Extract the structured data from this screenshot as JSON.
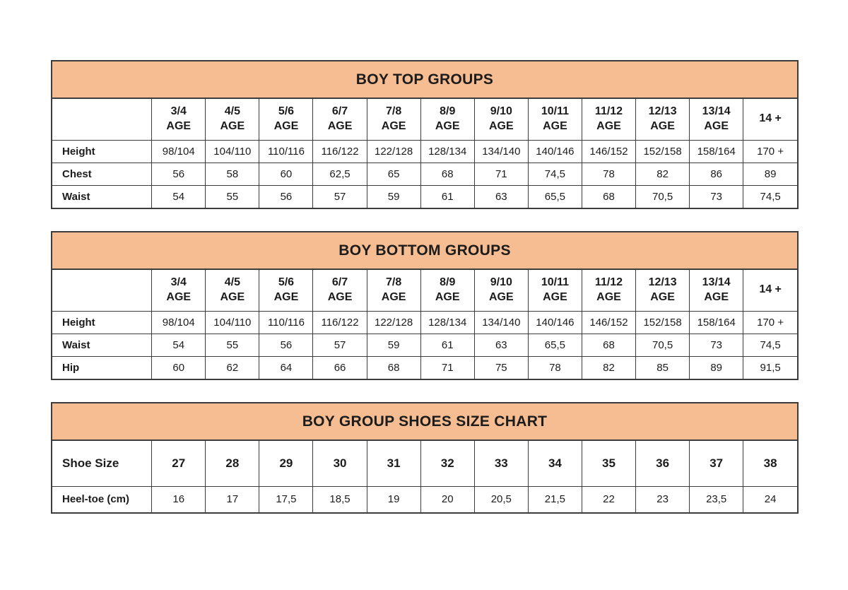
{
  "style": {
    "band_color": "#f6bc92",
    "border_color": "#3c3c3c",
    "text_color": "#1c1c1c",
    "background": "#ffffff"
  },
  "chart_data": [
    {
      "type": "table",
      "title": "BOY TOP GROUPS",
      "columns": [
        "",
        "3/4\nAGE",
        "4/5\nAGE",
        "5/6\nAGE",
        "6/7\nAGE",
        "7/8\nAGE",
        "8/9\nAGE",
        "9/10\nAGE",
        "10/11\nAGE",
        "11/12\nAGE",
        "12/13\nAGE",
        "13/14\nAGE",
        "14 +"
      ],
      "rows": [
        [
          "Height",
          "98/104",
          "104/110",
          "110/116",
          "116/122",
          "122/128",
          "128/134",
          "134/140",
          "140/146",
          "146/152",
          "152/158",
          "158/164",
          "170 +"
        ],
        [
          "Chest",
          "56",
          "58",
          "60",
          "62,5",
          "65",
          "68",
          "71",
          "74,5",
          "78",
          "82",
          "86",
          "89"
        ],
        [
          "Waist",
          "54",
          "55",
          "56",
          "57",
          "59",
          "61",
          "63",
          "65,5",
          "68",
          "70,5",
          "73",
          "74,5"
        ]
      ]
    },
    {
      "type": "table",
      "title": "BOY BOTTOM GROUPS",
      "columns": [
        "",
        "3/4\nAGE",
        "4/5\nAGE",
        "5/6\nAGE",
        "6/7\nAGE",
        "7/8\nAGE",
        "8/9\nAGE",
        "9/10\nAGE",
        "10/11\nAGE",
        "11/12\nAGE",
        "12/13\nAGE",
        "13/14\nAGE",
        "14 +"
      ],
      "rows": [
        [
          "Height",
          "98/104",
          "104/110",
          "110/116",
          "116/122",
          "122/128",
          "128/134",
          "134/140",
          "140/146",
          "146/152",
          "152/158",
          "158/164",
          "170 +"
        ],
        [
          "Waist",
          "54",
          "55",
          "56",
          "57",
          "59",
          "61",
          "63",
          "65,5",
          "68",
          "70,5",
          "73",
          "74,5"
        ],
        [
          "Hip",
          "60",
          "62",
          "64",
          "66",
          "68",
          "71",
          "75",
          "78",
          "82",
          "85",
          "89",
          "91,5"
        ]
      ]
    },
    {
      "type": "table",
      "title": "BOY GROUP SHOES SIZE CHART",
      "columns": [
        "Shoe Size",
        "27",
        "28",
        "29",
        "30",
        "31",
        "32",
        "33",
        "34",
        "35",
        "36",
        "37",
        "38"
      ],
      "rows": [
        [
          "Heel-toe (cm)",
          "16",
          "17",
          "17,5",
          "18,5",
          "19",
          "20",
          "20,5",
          "21,5",
          "22",
          "23",
          "23,5",
          "24"
        ]
      ]
    }
  ]
}
